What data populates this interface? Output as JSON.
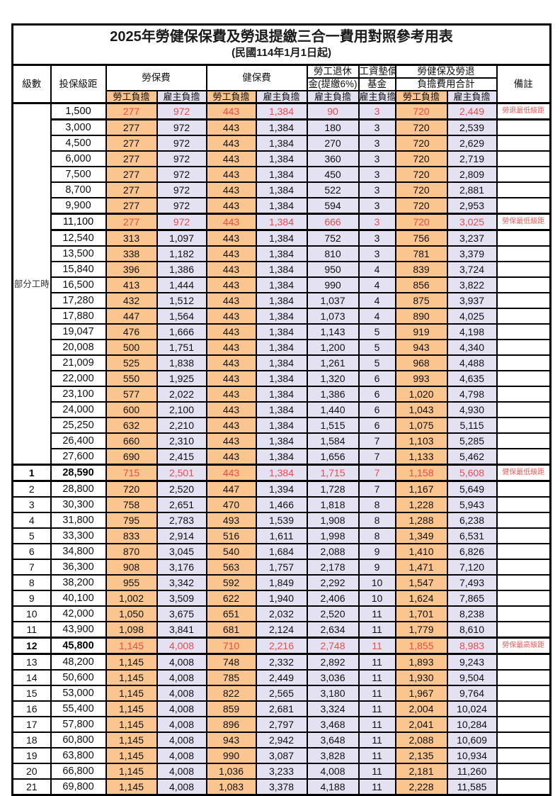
{
  "title": "2025年勞健保保費及勞退提繳三合一費用對照參考用表",
  "subtitle": "(民國114年1月1日起)",
  "header": {
    "level": "級數",
    "salary": "投保級距",
    "labor_ins": "勞保費",
    "health_ins": "健保費",
    "pension_l1": "勞工退休",
    "pension_l2": "金(提繳6%)",
    "wage_fund_l1": "工資墊償",
    "wage_fund_l2": "基金",
    "total_l1": "勞健保及勞退",
    "total_l2": "負擔費用合計",
    "note": "備註",
    "employee": "勞工負擔",
    "employer": "雇主負擔"
  },
  "group_label": "部分工時",
  "layout": {
    "group_rowspan": 23
  },
  "colors": {
    "employee_bg": "#FAC58F",
    "employer_bg": "#E3E1F2",
    "highlight_text": "#EE4B4B",
    "note_text": "#F25B5B",
    "border": "#000000"
  },
  "rows": [
    {
      "level": "",
      "salary": "1,500",
      "values": [
        "277",
        "972",
        "443",
        "1,384",
        "90",
        "3",
        "720",
        "2,449"
      ],
      "note": "勞退最低級距",
      "highlight": true,
      "bold": false
    },
    {
      "level": "",
      "salary": "3,000",
      "values": [
        "277",
        "972",
        "443",
        "1,384",
        "180",
        "3",
        "720",
        "2,539"
      ],
      "note": "",
      "highlight": false,
      "bold": false
    },
    {
      "level": "",
      "salary": "4,500",
      "values": [
        "277",
        "972",
        "443",
        "1,384",
        "270",
        "3",
        "720",
        "2,629"
      ],
      "note": "",
      "highlight": false,
      "bold": false
    },
    {
      "level": "",
      "salary": "6,000",
      "values": [
        "277",
        "972",
        "443",
        "1,384",
        "360",
        "3",
        "720",
        "2,719"
      ],
      "note": "",
      "highlight": false,
      "bold": false
    },
    {
      "level": "",
      "salary": "7,500",
      "values": [
        "277",
        "972",
        "443",
        "1,384",
        "450",
        "3",
        "720",
        "2,809"
      ],
      "note": "",
      "highlight": false,
      "bold": false
    },
    {
      "level": "",
      "salary": "8,700",
      "values": [
        "277",
        "972",
        "443",
        "1,384",
        "522",
        "3",
        "720",
        "2,881"
      ],
      "note": "",
      "highlight": false,
      "bold": false
    },
    {
      "level": "",
      "salary": "9,900",
      "values": [
        "277",
        "972",
        "443",
        "1,384",
        "594",
        "3",
        "720",
        "2,953"
      ],
      "note": "",
      "highlight": false,
      "bold": false
    },
    {
      "level": "",
      "salary": "11,100",
      "values": [
        "277",
        "972",
        "443",
        "1,384",
        "666",
        "3",
        "720",
        "3,025"
      ],
      "note": "勞保最低級距",
      "highlight": true,
      "bold": false
    },
    {
      "level": "",
      "salary": "12,540",
      "values": [
        "313",
        "1,097",
        "443",
        "1,384",
        "752",
        "3",
        "756",
        "3,237"
      ],
      "note": "",
      "highlight": false,
      "bold": false
    },
    {
      "level": "",
      "salary": "13,500",
      "values": [
        "338",
        "1,182",
        "443",
        "1,384",
        "810",
        "3",
        "781",
        "3,379"
      ],
      "note": "",
      "highlight": false,
      "bold": false
    },
    {
      "level": "",
      "salary": "15,840",
      "values": [
        "396",
        "1,386",
        "443",
        "1,384",
        "950",
        "4",
        "839",
        "3,724"
      ],
      "note": "",
      "highlight": false,
      "bold": false
    },
    {
      "level": "",
      "salary": "16,500",
      "values": [
        "413",
        "1,444",
        "443",
        "1,384",
        "990",
        "4",
        "856",
        "3,822"
      ],
      "note": "",
      "highlight": false,
      "bold": false
    },
    {
      "level": "",
      "salary": "17,280",
      "values": [
        "432",
        "1,512",
        "443",
        "1,384",
        "1,037",
        "4",
        "875",
        "3,937"
      ],
      "note": "",
      "highlight": false,
      "bold": false
    },
    {
      "level": "",
      "salary": "17,880",
      "values": [
        "447",
        "1,564",
        "443",
        "1,384",
        "1,073",
        "4",
        "890",
        "4,025"
      ],
      "note": "",
      "highlight": false,
      "bold": false
    },
    {
      "level": "",
      "salary": "19,047",
      "values": [
        "476",
        "1,666",
        "443",
        "1,384",
        "1,143",
        "5",
        "919",
        "4,198"
      ],
      "note": "",
      "highlight": false,
      "bold": false
    },
    {
      "level": "",
      "salary": "20,008",
      "values": [
        "500",
        "1,751",
        "443",
        "1,384",
        "1,200",
        "5",
        "943",
        "4,340"
      ],
      "note": "",
      "highlight": false,
      "bold": false
    },
    {
      "level": "",
      "salary": "21,009",
      "values": [
        "525",
        "1,838",
        "443",
        "1,384",
        "1,261",
        "5",
        "968",
        "4,488"
      ],
      "note": "",
      "highlight": false,
      "bold": false
    },
    {
      "level": "",
      "salary": "22,000",
      "values": [
        "550",
        "1,925",
        "443",
        "1,384",
        "1,320",
        "6",
        "993",
        "4,635"
      ],
      "note": "",
      "highlight": false,
      "bold": false
    },
    {
      "level": "",
      "salary": "23,100",
      "values": [
        "577",
        "2,022",
        "443",
        "1,384",
        "1,386",
        "6",
        "1,020",
        "4,798"
      ],
      "note": "",
      "highlight": false,
      "bold": false
    },
    {
      "level": "",
      "salary": "24,000",
      "values": [
        "600",
        "2,100",
        "443",
        "1,384",
        "1,440",
        "6",
        "1,043",
        "4,930"
      ],
      "note": "",
      "highlight": false,
      "bold": false
    },
    {
      "level": "",
      "salary": "25,250",
      "values": [
        "632",
        "2,210",
        "443",
        "1,384",
        "1,515",
        "6",
        "1,075",
        "5,115"
      ],
      "note": "",
      "highlight": false,
      "bold": false
    },
    {
      "level": "",
      "salary": "26,400",
      "values": [
        "660",
        "2,310",
        "443",
        "1,384",
        "1,584",
        "7",
        "1,103",
        "5,285"
      ],
      "note": "",
      "highlight": false,
      "bold": false
    },
    {
      "level": "",
      "salary": "27,600",
      "values": [
        "690",
        "2,415",
        "443",
        "1,384",
        "1,656",
        "7",
        "1,133",
        "5,462"
      ],
      "note": "",
      "highlight": false,
      "bold": false
    },
    {
      "level": "1",
      "salary": "28,590",
      "values": [
        "715",
        "2,501",
        "443",
        "1,384",
        "1,715",
        "7",
        "1,158",
        "5,608"
      ],
      "note": "健保最低級距",
      "highlight": true,
      "bold": true
    },
    {
      "level": "2",
      "salary": "28,800",
      "values": [
        "720",
        "2,520",
        "447",
        "1,394",
        "1,728",
        "7",
        "1,167",
        "5,649"
      ],
      "note": "",
      "highlight": false,
      "bold": false
    },
    {
      "level": "3",
      "salary": "30,300",
      "values": [
        "758",
        "2,651",
        "470",
        "1,466",
        "1,818",
        "8",
        "1,228",
        "5,943"
      ],
      "note": "",
      "highlight": false,
      "bold": false
    },
    {
      "level": "4",
      "salary": "31,800",
      "values": [
        "795",
        "2,783",
        "493",
        "1,539",
        "1,908",
        "8",
        "1,288",
        "6,238"
      ],
      "note": "",
      "highlight": false,
      "bold": false
    },
    {
      "level": "5",
      "salary": "33,300",
      "values": [
        "833",
        "2,914",
        "516",
        "1,611",
        "1,998",
        "8",
        "1,349",
        "6,531"
      ],
      "note": "",
      "highlight": false,
      "bold": false
    },
    {
      "level": "6",
      "salary": "34,800",
      "values": [
        "870",
        "3,045",
        "540",
        "1,684",
        "2,088",
        "9",
        "1,410",
        "6,826"
      ],
      "note": "",
      "highlight": false,
      "bold": false
    },
    {
      "level": "7",
      "salary": "36,300",
      "values": [
        "908",
        "3,176",
        "563",
        "1,757",
        "2,178",
        "9",
        "1,471",
        "7,120"
      ],
      "note": "",
      "highlight": false,
      "bold": false
    },
    {
      "level": "8",
      "salary": "38,200",
      "values": [
        "955",
        "3,342",
        "592",
        "1,849",
        "2,292",
        "10",
        "1,547",
        "7,493"
      ],
      "note": "",
      "highlight": false,
      "bold": false
    },
    {
      "level": "9",
      "salary": "40,100",
      "values": [
        "1,002",
        "3,509",
        "622",
        "1,940",
        "2,406",
        "10",
        "1,624",
        "7,865"
      ],
      "note": "",
      "highlight": false,
      "bold": false
    },
    {
      "level": "10",
      "salary": "42,000",
      "values": [
        "1,050",
        "3,675",
        "651",
        "2,032",
        "2,520",
        "11",
        "1,701",
        "8,238"
      ],
      "note": "",
      "highlight": false,
      "bold": false
    },
    {
      "level": "11",
      "salary": "43,900",
      "values": [
        "1,098",
        "3,841",
        "681",
        "2,124",
        "2,634",
        "11",
        "1,779",
        "8,610"
      ],
      "note": "",
      "highlight": false,
      "bold": false
    },
    {
      "level": "12",
      "salary": "45,800",
      "values": [
        "1,145",
        "4,008",
        "710",
        "2,216",
        "2,748",
        "11",
        "1,855",
        "8,983"
      ],
      "note": "勞保最高級距",
      "highlight": true,
      "bold": true
    },
    {
      "level": "13",
      "salary": "48,200",
      "values": [
        "1,145",
        "4,008",
        "748",
        "2,332",
        "2,892",
        "11",
        "1,893",
        "9,243"
      ],
      "note": "",
      "highlight": false,
      "bold": false
    },
    {
      "level": "14",
      "salary": "50,600",
      "values": [
        "1,145",
        "4,008",
        "785",
        "2,449",
        "3,036",
        "11",
        "1,930",
        "9,504"
      ],
      "note": "",
      "highlight": false,
      "bold": false
    },
    {
      "level": "15",
      "salary": "53,000",
      "values": [
        "1,145",
        "4,008",
        "822",
        "2,565",
        "3,180",
        "11",
        "1,967",
        "9,764"
      ],
      "note": "",
      "highlight": false,
      "bold": false
    },
    {
      "level": "16",
      "salary": "55,400",
      "values": [
        "1,145",
        "4,008",
        "859",
        "2,681",
        "3,324",
        "11",
        "2,004",
        "10,024"
      ],
      "note": "",
      "highlight": false,
      "bold": false
    },
    {
      "level": "17",
      "salary": "57,800",
      "values": [
        "1,145",
        "4,008",
        "896",
        "2,797",
        "3,468",
        "11",
        "2,041",
        "10,284"
      ],
      "note": "",
      "highlight": false,
      "bold": false
    },
    {
      "level": "18",
      "salary": "60,800",
      "values": [
        "1,145",
        "4,008",
        "943",
        "2,942",
        "3,648",
        "11",
        "2,088",
        "10,609"
      ],
      "note": "",
      "highlight": false,
      "bold": false
    },
    {
      "level": "19",
      "salary": "63,800",
      "values": [
        "1,145",
        "4,008",
        "990",
        "3,087",
        "3,828",
        "11",
        "2,135",
        "10,934"
      ],
      "note": "",
      "highlight": false,
      "bold": false
    },
    {
      "level": "20",
      "salary": "66,800",
      "values": [
        "1,145",
        "4,008",
        "1,036",
        "3,233",
        "4,008",
        "11",
        "2,181",
        "11,260"
      ],
      "note": "",
      "highlight": false,
      "bold": false
    },
    {
      "level": "21",
      "salary": "69,800",
      "values": [
        "1,145",
        "4,008",
        "1,083",
        "3,378",
        "4,188",
        "11",
        "2,228",
        "11,585"
      ],
      "note": "",
      "highlight": false,
      "bold": false
    }
  ]
}
